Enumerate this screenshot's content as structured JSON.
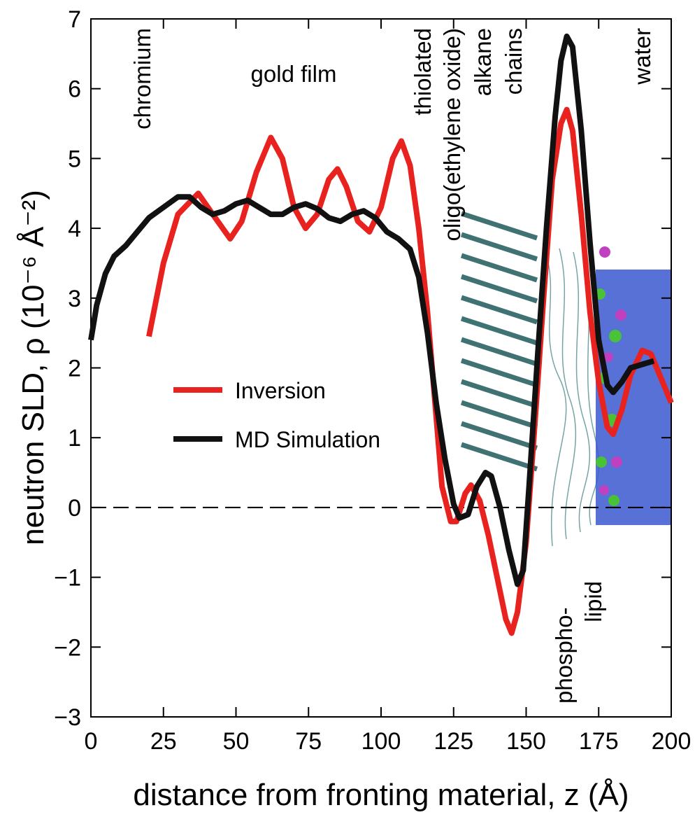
{
  "chart_data": {
    "type": "line",
    "xlabel": "distance from fronting material, z  (Å)",
    "ylabel": "neutron SLD, ρ  (10⁻⁶ Å⁻²)",
    "annotations": [
      "chromium",
      "gold film",
      "thiolated",
      "oligo(ethylene oxide)",
      "alkane",
      "chains",
      "phospho-",
      "lipid",
      "water"
    ],
    "xlim": [
      0,
      200
    ],
    "xticks": [
      0,
      25,
      50,
      75,
      100,
      125,
      150,
      175,
      200
    ],
    "ylim": [
      -3,
      7
    ],
    "yticks": [
      {
        "value": -3,
        "label": "−3"
      },
      {
        "value": -2,
        "label": "−2"
      },
      {
        "value": -1,
        "label": "−1"
      },
      0,
      1,
      2,
      3,
      4,
      5,
      6,
      7
    ],
    "reference_line": 0,
    "legend": "center-left",
    "series": [
      {
        "name": "Inversion",
        "color": "#e8231f",
        "x": [
          20,
          25,
          30,
          37,
          42,
          48,
          52,
          57,
          62,
          66,
          70,
          74,
          78,
          82,
          85,
          88,
          92,
          96,
          100,
          104,
          107,
          110,
          113,
          116,
          119,
          121,
          124,
          126,
          129,
          131,
          134,
          137,
          140,
          143,
          145,
          147,
          150,
          153,
          156,
          159,
          162,
          164,
          166,
          169,
          172,
          175,
          178,
          180,
          183,
          186,
          190,
          193,
          197,
          200
        ],
        "values": [
          2.45,
          3.5,
          4.2,
          4.5,
          4.2,
          3.85,
          4.1,
          4.8,
          5.3,
          5.0,
          4.3,
          4.0,
          4.2,
          4.7,
          4.85,
          4.6,
          4.1,
          3.95,
          4.3,
          5.0,
          5.25,
          4.9,
          4.0,
          2.8,
          1.3,
          0.3,
          -0.2,
          -0.2,
          0.2,
          0.32,
          0.1,
          -0.4,
          -1.0,
          -1.6,
          -1.8,
          -1.5,
          -0.5,
          1.2,
          3.0,
          4.7,
          5.5,
          5.7,
          5.4,
          4.2,
          2.8,
          1.8,
          1.15,
          1.05,
          1.4,
          1.9,
          2.25,
          2.2,
          1.8,
          1.5
        ]
      },
      {
        "name": "MD Simulation",
        "color": "#111111",
        "x": [
          0,
          2,
          5,
          8,
          12,
          16,
          20,
          25,
          30,
          34,
          38,
          42,
          46,
          50,
          54,
          58,
          62,
          66,
          70,
          74,
          78,
          82,
          86,
          90,
          94,
          98,
          102,
          106,
          110,
          113,
          116,
          119,
          122,
          125,
          127,
          130,
          133,
          136,
          138,
          141,
          144,
          147,
          149,
          151,
          154,
          157,
          160,
          162,
          164,
          166,
          169,
          172,
          175,
          178,
          180,
          183,
          186,
          190,
          194
        ],
        "values": [
          2.4,
          2.9,
          3.35,
          3.6,
          3.75,
          3.95,
          4.15,
          4.3,
          4.45,
          4.45,
          4.3,
          4.2,
          4.25,
          4.35,
          4.4,
          4.3,
          4.2,
          4.2,
          4.3,
          4.35,
          4.28,
          4.15,
          4.1,
          4.2,
          4.25,
          4.15,
          3.95,
          3.85,
          3.7,
          3.3,
          2.5,
          1.5,
          0.7,
          0.05,
          -0.15,
          -0.1,
          0.3,
          0.5,
          0.45,
          0.0,
          -0.6,
          -1.1,
          -0.9,
          0.3,
          2.2,
          4.0,
          5.6,
          6.4,
          6.75,
          6.6,
          5.4,
          3.8,
          2.4,
          1.75,
          1.65,
          1.8,
          2.0,
          2.05,
          2.1
        ]
      }
    ]
  }
}
